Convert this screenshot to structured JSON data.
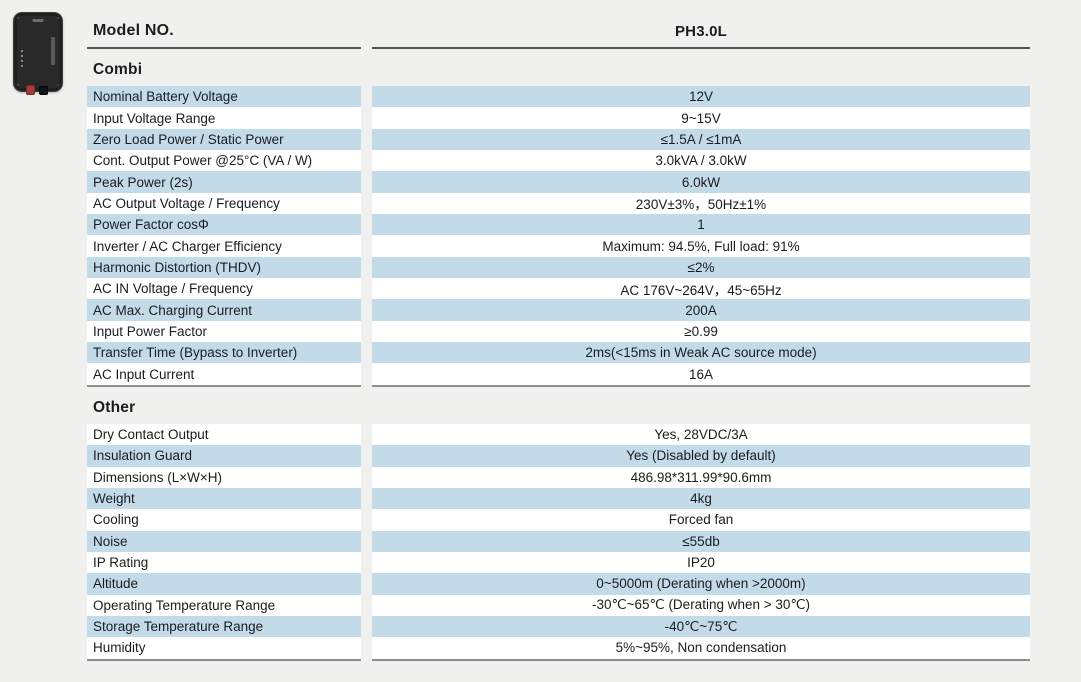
{
  "header": {
    "model_label": "Model NO.",
    "model_value": "PH3.0L"
  },
  "colors": {
    "row_blue": "#c3dbe8",
    "row_white": "#ffffff",
    "page_bg": "#f0f1ef"
  },
  "product_image": {
    "description": "black wall-mount inverter-charger with red and black DC terminals"
  },
  "sections": [
    {
      "title": "Combi",
      "rows": [
        {
          "label": "Nominal Battery Voltage",
          "value": "12V",
          "shaded": true
        },
        {
          "label": "Input Voltage Range",
          "value": "9~15V",
          "shaded": false
        },
        {
          "label": "Zero Load Power / Static Power",
          "value": "≤1.5A / ≤1mA",
          "shaded": true
        },
        {
          "label": "Cont. Output Power @25°C (VA / W)",
          "value": "3.0kVA / 3.0kW",
          "shaded": false
        },
        {
          "label": "Peak Power (2s)",
          "value": "6.0kW",
          "shaded": true
        },
        {
          "label": "AC Output Voltage / Frequency",
          "value": "230V±3%，50Hz±1%",
          "shaded": false
        },
        {
          "label": "Power Factor cosΦ",
          "value": "1",
          "shaded": true
        },
        {
          "label": "Inverter / AC Charger Efficiency",
          "value": "Maximum: 94.5%, Full load: 91%",
          "shaded": false
        },
        {
          "label": "Harmonic Distortion (THDV)",
          "value": "≤2%",
          "shaded": true
        },
        {
          "label": "AC IN Voltage / Frequency",
          "value": "AC 176V~264V，45~65Hz",
          "shaded": false
        },
        {
          "label": "AC Max. Charging Current",
          "value": "200A",
          "shaded": true
        },
        {
          "label": "Input Power Factor",
          "value": "≥0.99",
          "shaded": false
        },
        {
          "label": "Transfer Time (Bypass to Inverter)",
          "value": "2ms(<15ms in Weak AC source mode)",
          "shaded": true
        },
        {
          "label": "AC Input Current",
          "value": "16A",
          "shaded": false
        }
      ]
    },
    {
      "title": "Other",
      "rows": [
        {
          "label": "Dry Contact Output",
          "value": "Yes, 28VDC/3A",
          "shaded": false
        },
        {
          "label": "Insulation Guard",
          "value": "Yes (Disabled by default)",
          "shaded": true
        },
        {
          "label": "Dimensions (L×W×H)",
          "value": "486.98*311.99*90.6mm",
          "shaded": false
        },
        {
          "label": "Weight",
          "value": "4kg",
          "shaded": true
        },
        {
          "label": "Cooling",
          "value": "Forced fan",
          "shaded": false
        },
        {
          "label": "Noise",
          "value": "≤55db",
          "shaded": true
        },
        {
          "label": "IP Rating",
          "value": "IP20",
          "shaded": false
        },
        {
          "label": "Altitude",
          "value": "0~5000m (Derating when >2000m)",
          "shaded": true
        },
        {
          "label": "Operating Temperature Range",
          "value": "-30℃~65℃ (Derating when > 30℃)",
          "shaded": false
        },
        {
          "label": "Storage Temperature Range",
          "value": "-40℃~75℃",
          "shaded": true
        },
        {
          "label": "Humidity",
          "value": "5%~95%, Non condensation",
          "shaded": false
        }
      ]
    }
  ]
}
